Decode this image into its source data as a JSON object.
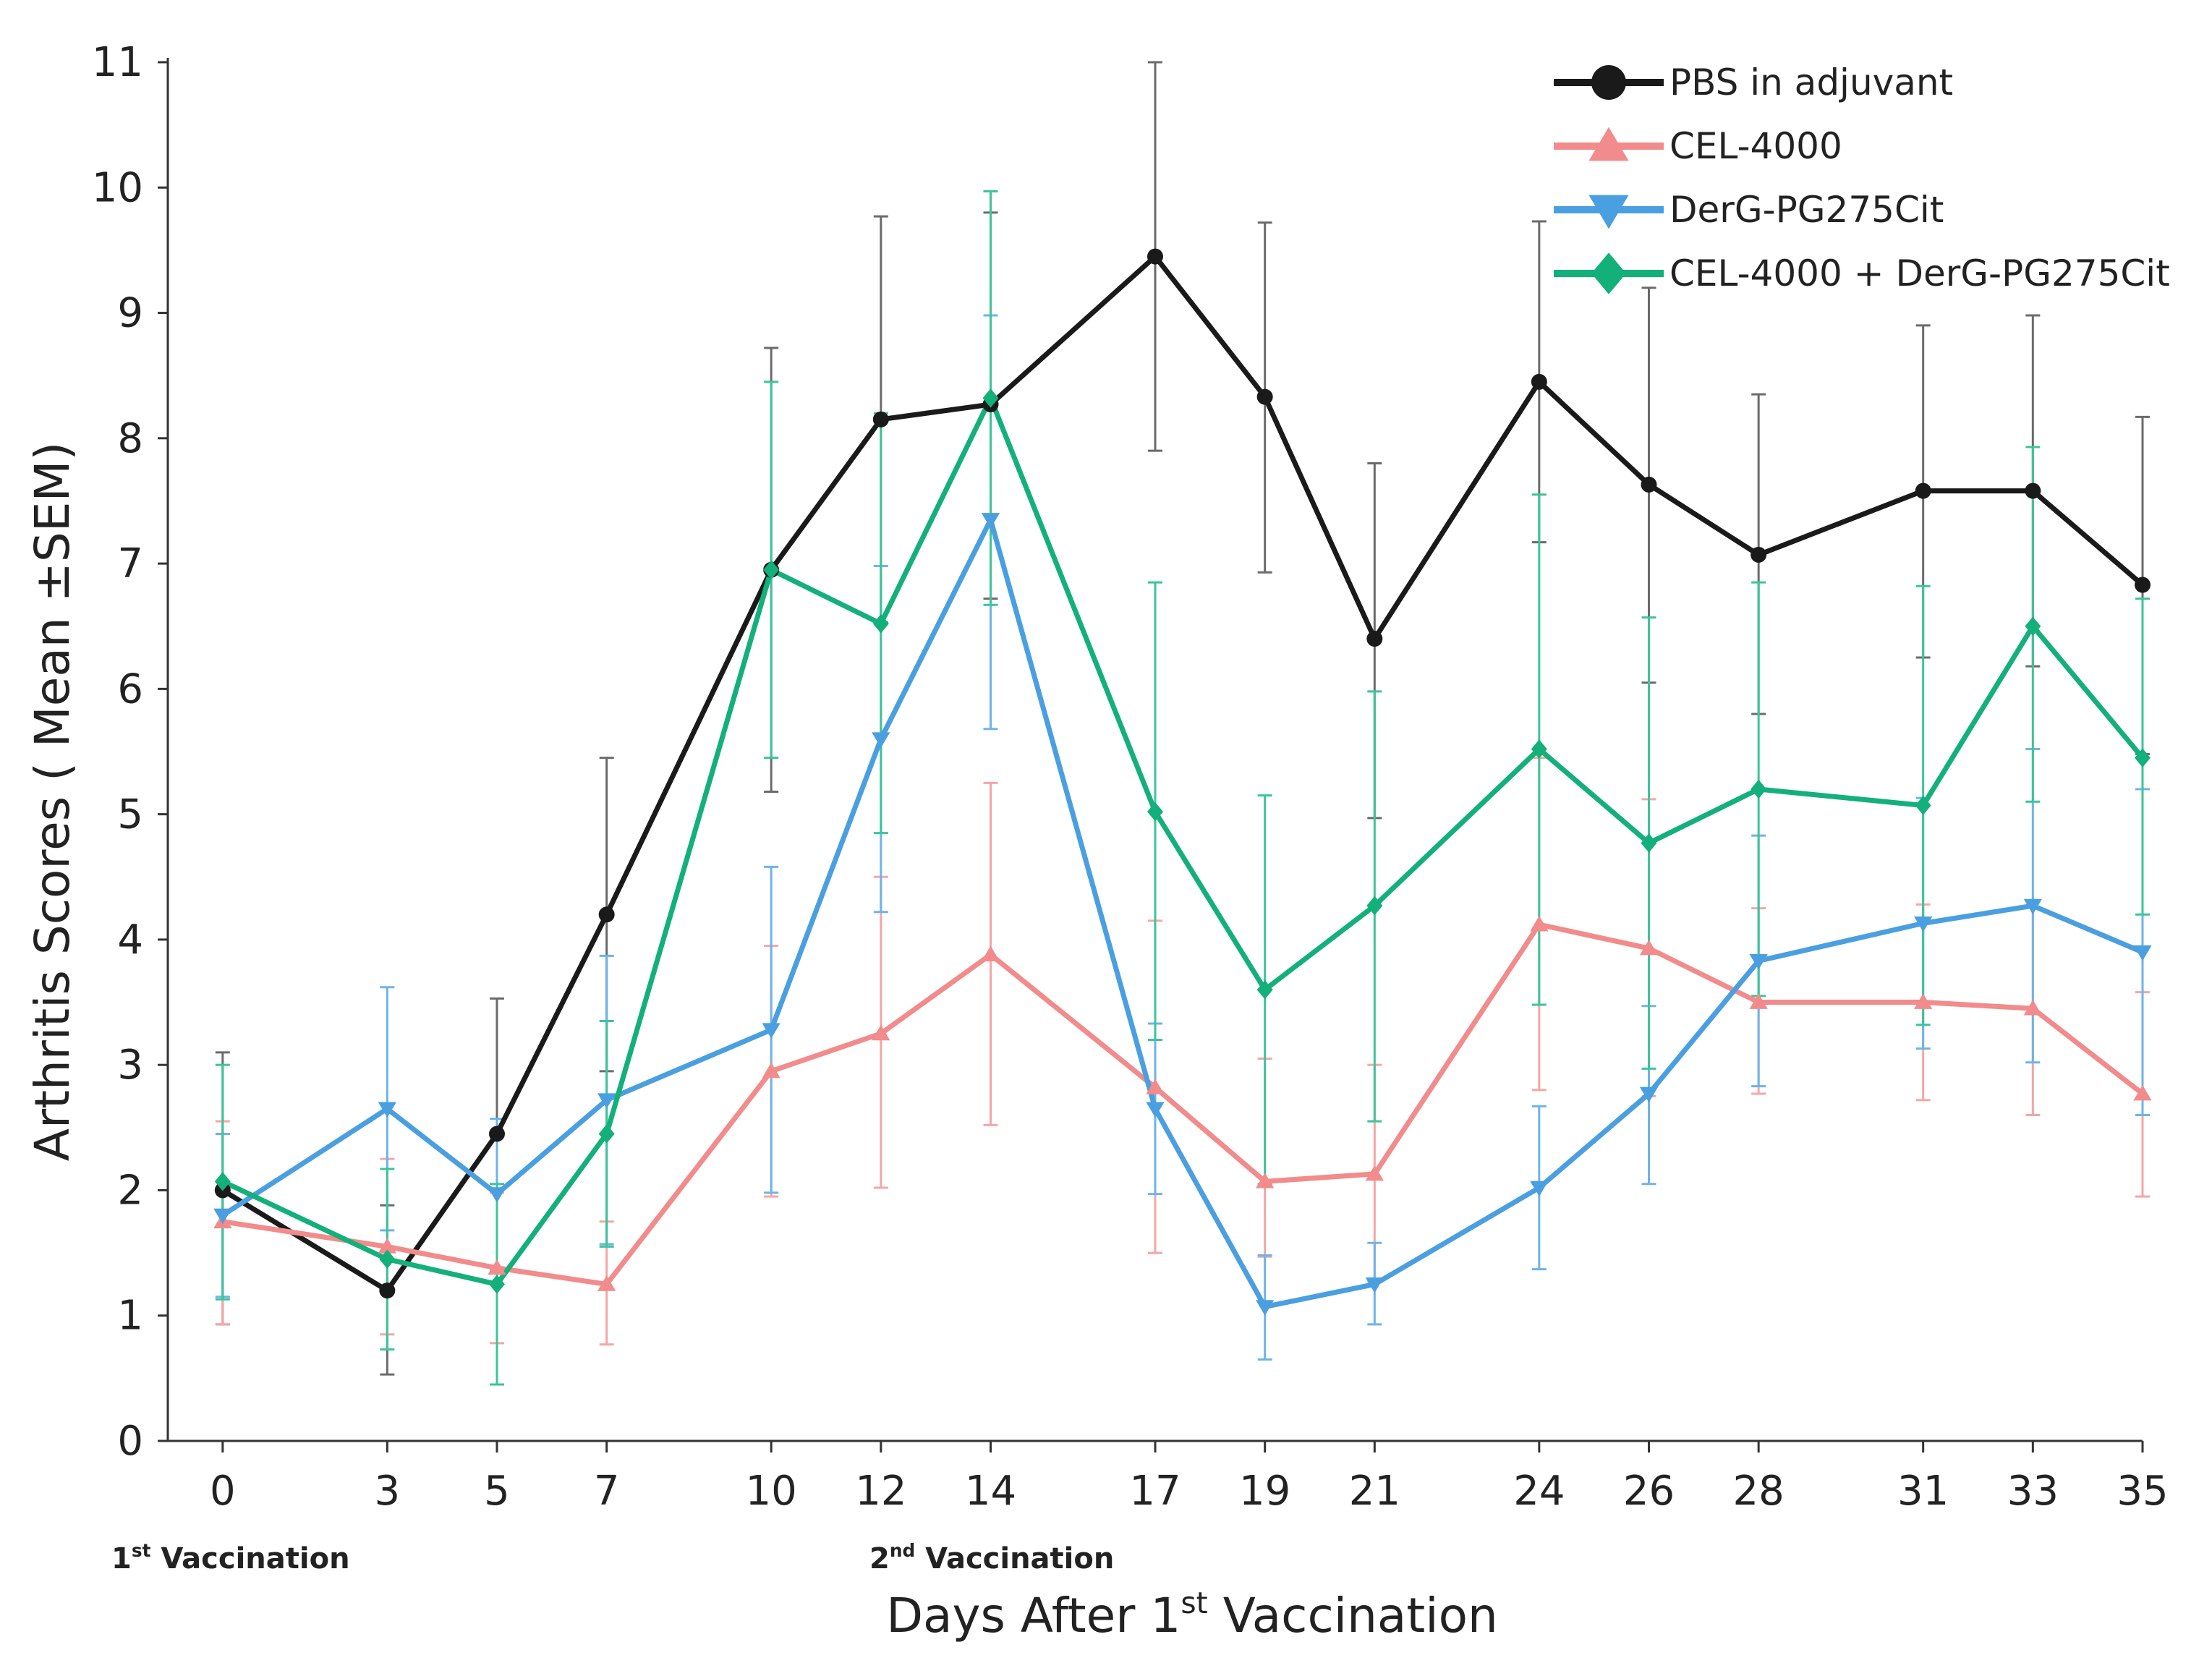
{
  "chart_data": {
    "type": "line",
    "title": "",
    "xlabel": "Days After 1st Vaccination",
    "xlabel_parts": {
      "pre": "Days After 1",
      "sup": "st",
      "post": " Vaccination"
    },
    "ylabel": "Arthritis Scores ( Mean ±SEM)",
    "x": [
      0,
      3,
      5,
      7,
      10,
      12,
      14,
      17,
      19,
      21,
      24,
      26,
      28,
      31,
      33,
      35
    ],
    "xlim": [
      -1,
      35
    ],
    "ylim": [
      0,
      11
    ],
    "yticks": [
      0,
      1,
      2,
      3,
      4,
      5,
      6,
      7,
      8,
      9,
      10,
      11
    ],
    "xticks": [
      0,
      3,
      5,
      7,
      10,
      12,
      14,
      17,
      19,
      21,
      24,
      26,
      28,
      31,
      33,
      35
    ],
    "legend_position": "top-right",
    "series": [
      {
        "name": "PBS in adjuvant",
        "color": "#1a1a1a",
        "errcolor": "#6b6b6b",
        "marker": "circle",
        "values": [
          2.0,
          1.2,
          2.45,
          4.2,
          6.95,
          8.15,
          8.27,
          9.45,
          8.33,
          6.4,
          8.45,
          7.63,
          7.07,
          7.58,
          7.58,
          6.83
        ],
        "upper": [
          3.1,
          1.88,
          3.53,
          5.45,
          8.72,
          9.77,
          9.8,
          11.0,
          9.72,
          7.8,
          9.73,
          9.2,
          8.35,
          8.9,
          8.98,
          8.17
        ],
        "lower": [
          0.93,
          0.53,
          1.35,
          2.95,
          5.18,
          6.53,
          6.72,
          7.9,
          6.93,
          4.97,
          7.17,
          6.05,
          5.8,
          6.25,
          6.18,
          5.48
        ]
      },
      {
        "name": "CEL-4000",
        "color": "#f28b8b",
        "errcolor": "#f5a6a6",
        "marker": "triangle-up",
        "values": [
          1.75,
          1.55,
          1.38,
          1.25,
          2.95,
          3.25,
          3.88,
          2.82,
          2.07,
          2.13,
          4.12,
          3.93,
          3.5,
          3.5,
          3.45,
          2.77
        ],
        "upper": [
          2.55,
          2.25,
          1.98,
          1.75,
          3.95,
          4.5,
          5.25,
          4.15,
          3.05,
          3.0,
          5.45,
          5.12,
          4.25,
          4.28,
          4.3,
          3.58
        ],
        "lower": [
          0.93,
          0.85,
          0.78,
          0.77,
          1.95,
          2.02,
          2.52,
          1.5,
          1.47,
          1.27,
          2.8,
          2.75,
          2.77,
          2.72,
          2.6,
          1.95
        ]
      },
      {
        "name": "DerG-PG275Cit",
        "color": "#4a9fe0",
        "errcolor": "#6fb3e8",
        "marker": "triangle-down",
        "values": [
          1.8,
          2.65,
          1.97,
          2.72,
          3.28,
          5.6,
          7.35,
          2.65,
          1.07,
          1.25,
          2.02,
          2.77,
          3.83,
          4.13,
          4.27,
          3.9
        ],
        "upper": [
          2.45,
          3.62,
          2.57,
          3.87,
          4.58,
          6.98,
          8.98,
          3.33,
          1.48,
          1.58,
          2.67,
          3.47,
          4.83,
          5.13,
          5.52,
          5.2
        ],
        "lower": [
          1.15,
          1.68,
          1.37,
          1.57,
          1.98,
          4.22,
          5.68,
          1.97,
          0.65,
          0.93,
          1.37,
          2.05,
          2.83,
          3.13,
          3.02,
          2.6
        ]
      },
      {
        "name": "CEL-4000 + DerG-PG275Cit",
        "color": "#13b07a",
        "errcolor": "#3cc49a",
        "marker": "diamond",
        "values": [
          2.07,
          1.45,
          1.25,
          2.45,
          6.95,
          6.52,
          8.32,
          5.02,
          3.6,
          4.27,
          5.52,
          4.77,
          5.2,
          5.07,
          6.5,
          5.45
        ],
        "upper": [
          3.0,
          2.17,
          2.05,
          3.35,
          8.45,
          8.2,
          9.97,
          6.85,
          5.15,
          5.98,
          7.55,
          6.57,
          6.85,
          6.82,
          7.93,
          6.72
        ],
        "lower": [
          1.13,
          0.73,
          0.45,
          1.55,
          5.45,
          4.85,
          6.67,
          3.2,
          2.05,
          2.55,
          3.48,
          2.97,
          3.55,
          3.32,
          5.1,
          4.2
        ]
      }
    ]
  },
  "annotations": {
    "vacc1": {
      "num": "1",
      "sup": "st",
      "text": " Vaccination"
    },
    "vacc2": {
      "num": "2",
      "sup": "nd",
      "text": " Vaccination"
    }
  }
}
